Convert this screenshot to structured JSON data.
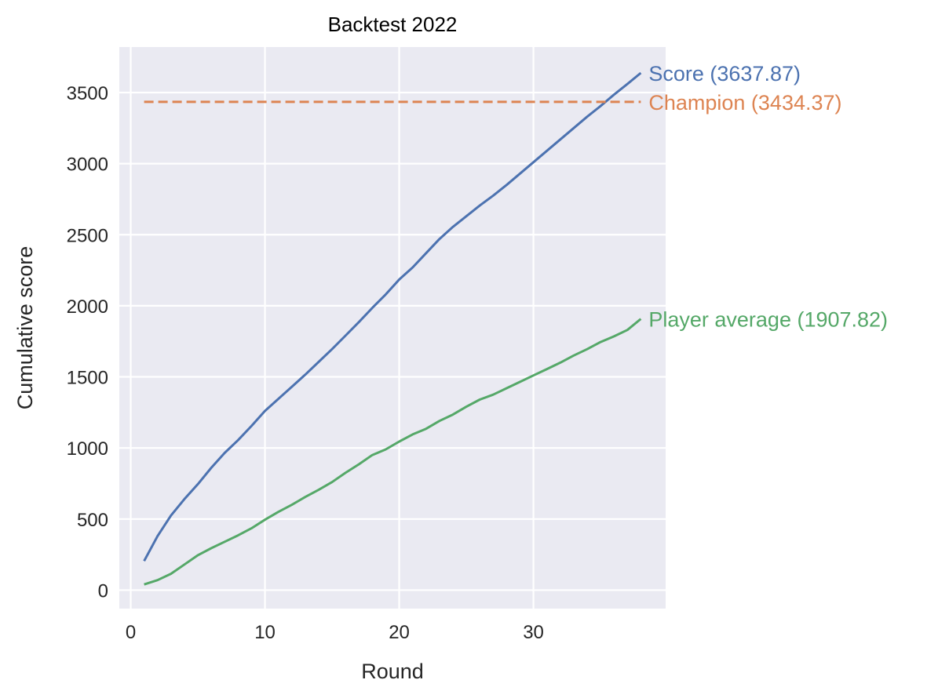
{
  "chart_data": {
    "type": "line",
    "title": "Backtest 2022",
    "xlabel": "Round",
    "ylabel": "Cumulative score",
    "xlim": [
      -0.85,
      39.85
    ],
    "ylim": [
      -130,
      3820
    ],
    "xticks": [
      0,
      10,
      20,
      30
    ],
    "yticks": [
      0,
      500,
      1000,
      1500,
      2000,
      2500,
      3000,
      3500
    ],
    "grid": true,
    "background": "#eaeaf2",
    "series": [
      {
        "name": "Score",
        "label": "Score (3637.87)",
        "color": "#4c72b0",
        "dash": false,
        "x": [
          1,
          2,
          3,
          4,
          5,
          6,
          7,
          8,
          9,
          10,
          11,
          12,
          13,
          14,
          15,
          16,
          17,
          18,
          19,
          20,
          21,
          22,
          23,
          24,
          25,
          26,
          27,
          28,
          29,
          30,
          31,
          32,
          33,
          34,
          35,
          36,
          37,
          38
        ],
        "y": [
          205,
          380,
          525,
          640,
          745,
          860,
          965,
          1055,
          1155,
          1260,
          1345,
          1430,
          1515,
          1605,
          1695,
          1790,
          1885,
          1985,
          2080,
          2185,
          2270,
          2370,
          2470,
          2555,
          2630,
          2705,
          2775,
          2850,
          2930,
          3010,
          3090,
          3170,
          3250,
          3330,
          3405,
          3485,
          3560,
          3637.87
        ]
      },
      {
        "name": "Champion",
        "label": "Champion (3434.37)",
        "color": "#dd8452",
        "dash": true,
        "x": [
          1,
          38
        ],
        "y": [
          3434.37,
          3434.37
        ]
      },
      {
        "name": "Player average",
        "label": "Player average (1907.82)",
        "color": "#55a868",
        "dash": false,
        "x": [
          1,
          2,
          3,
          4,
          5,
          6,
          7,
          8,
          9,
          10,
          11,
          12,
          13,
          14,
          15,
          16,
          17,
          18,
          19,
          20,
          21,
          22,
          23,
          24,
          25,
          26,
          27,
          28,
          29,
          30,
          31,
          32,
          33,
          34,
          35,
          36,
          37,
          38
        ],
        "y": [
          40,
          70,
          115,
          180,
          245,
          295,
          340,
          385,
          435,
          495,
          550,
          600,
          655,
          705,
          760,
          825,
          885,
          950,
          990,
          1045,
          1095,
          1135,
          1190,
          1235,
          1290,
          1340,
          1375,
          1420,
          1465,
          1510,
          1555,
          1600,
          1650,
          1695,
          1745,
          1785,
          1830,
          1907.82
        ]
      }
    ]
  }
}
